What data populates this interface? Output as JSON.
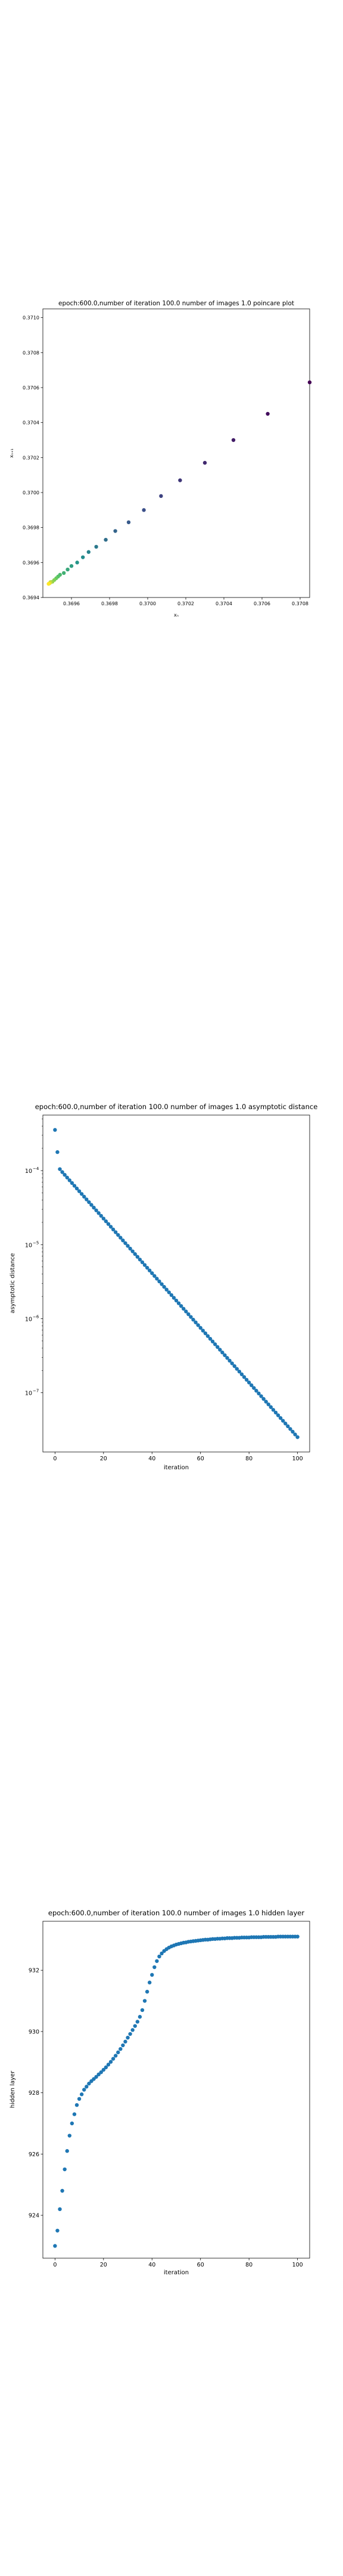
{
  "chart_data": [
    {
      "type": "scatter",
      "title": "epoch:600.0,number of iteration 100.0 number of images 1.0 poincare plot",
      "xlabel": "xₙ",
      "ylabel": "xₙ₊₁",
      "xlim": [
        0.36945,
        0.37085
      ],
      "ylim": [
        0.3694,
        0.37105
      ],
      "xticks": [
        0.3696,
        0.3698,
        0.37,
        0.3702,
        0.3704,
        0.3706,
        0.3708
      ],
      "xtick_labels": [
        "0.3696",
        "0.3698",
        "0.3700",
        "0.3702",
        "0.3704",
        "0.3706",
        "0.3708"
      ],
      "yticks": [
        0.3694,
        0.3696,
        0.3698,
        0.37,
        0.3702,
        0.3704,
        0.3706,
        0.3708,
        0.371
      ],
      "ytick_labels": [
        "0.3694",
        "0.3696",
        "0.3698",
        "0.3700",
        "0.3702",
        "0.3704",
        "0.3706",
        "0.3708",
        "0.3710"
      ],
      "colormap": "viridis",
      "color_by": "iteration",
      "series": [
        {
          "x": [
            0.37085,
            0.37063,
            0.37045,
            0.3703,
            0.37017,
            0.37007,
            0.36998,
            0.3699,
            0.36983,
            0.36978,
            0.36973,
            0.36969,
            0.36966,
            0.36963,
            0.3696,
            0.36958,
            0.36956,
            0.36954,
            0.36953,
            0.36952,
            0.36951,
            0.3695,
            0.36949,
            0.369488,
            0.369484,
            0.36948
          ],
          "y": [
            0.37063,
            0.37045,
            0.3703,
            0.37017,
            0.37007,
            0.36998,
            0.3699,
            0.36983,
            0.36978,
            0.36973,
            0.36969,
            0.36966,
            0.36963,
            0.3696,
            0.36958,
            0.36956,
            0.36954,
            0.36953,
            0.36952,
            0.36951,
            0.3695,
            0.36949,
            0.369488,
            0.369484,
            0.36948,
            0.369478
          ]
        }
      ],
      "grid": false
    },
    {
      "type": "scatter",
      "title": "epoch:600.0,number of iteration 100.0  number of images 1.0 asymptotic distance",
      "xlabel": "iteration",
      "ylabel": "asymptotic distance",
      "yscale": "log",
      "xlim": [
        -5,
        105
      ],
      "ylim_log10": [
        -7.8,
        -3.25
      ],
      "xticks": [
        0,
        20,
        40,
        60,
        80,
        100
      ],
      "xtick_labels": [
        "0",
        "20",
        "40",
        "60",
        "80",
        "100"
      ],
      "yticks_log10": [
        -4,
        -5,
        -6,
        -7
      ],
      "ytick_base": "10",
      "ytick_exponents": [
        "−4",
        "−5",
        "−6",
        "−7"
      ],
      "series": [
        {
          "x_start": 0,
          "x_end": 100,
          "head_log10": [
            -3.45,
            -3.75,
            -3.98
          ],
          "log10_at_3": -4.02,
          "log10_at_100": -7.6
        }
      ],
      "color": "#1f77b4",
      "grid": false
    },
    {
      "type": "scatter",
      "title": "epoch:600.0,number of iteration 100.0  number of images 1.0 hidden layer",
      "xlabel": "iteration",
      "ylabel": "hidden layer",
      "xlim": [
        -5,
        105
      ],
      "ylim": [
        922.6,
        933.6
      ],
      "xticks": [
        0,
        20,
        40,
        60,
        80,
        100
      ],
      "xtick_labels": [
        "0",
        "20",
        "40",
        "60",
        "80",
        "100"
      ],
      "yticks": [
        924,
        926,
        928,
        930,
        932
      ],
      "ytick_labels": [
        "924",
        "926",
        "928",
        "930",
        "932"
      ],
      "series": [
        {
          "x": [
            0,
            1,
            2,
            3,
            4,
            5,
            6,
            7,
            8,
            9,
            10,
            11,
            12,
            13,
            14,
            15,
            16,
            17,
            18,
            19,
            20,
            21,
            22,
            23,
            24,
            25,
            26,
            27,
            28,
            29,
            30,
            31,
            32,
            33,
            34,
            35,
            36,
            37,
            38,
            39,
            40,
            41,
            42,
            43,
            44,
            45,
            46,
            47,
            48,
            49,
            50,
            51,
            52,
            53,
            54,
            55,
            56,
            57,
            58,
            59,
            60,
            61,
            62,
            63,
            64,
            65,
            66,
            67,
            68,
            69,
            70,
            71,
            72,
            73,
            74,
            75,
            76,
            77,
            78,
            79,
            80,
            81,
            82,
            83,
            84,
            85,
            86,
            87,
            88,
            89,
            90,
            91,
            92,
            93,
            94,
            95,
            96,
            97,
            98,
            99,
            100
          ],
          "y": [
            923.0,
            923.5,
            924.2,
            924.8,
            925.5,
            926.1,
            926.6,
            927.0,
            927.3,
            927.6,
            927.8,
            927.95,
            928.1,
            928.2,
            928.3,
            928.38,
            928.45,
            928.52,
            928.6,
            928.67,
            928.75,
            928.83,
            928.92,
            929.01,
            929.11,
            929.21,
            929.32,
            929.43,
            929.55,
            929.67,
            929.8,
            929.92,
            930.05,
            930.18,
            930.32,
            930.48,
            930.7,
            931.0,
            931.3,
            931.6,
            931.85,
            932.1,
            932.3,
            932.45,
            932.55,
            932.63,
            932.69,
            932.74,
            932.78,
            932.81,
            932.84,
            932.86,
            932.88,
            932.9,
            932.91,
            932.93,
            932.94,
            932.95,
            932.96,
            932.97,
            932.98,
            932.99,
            933.0,
            933.0,
            933.01,
            933.02,
            933.02,
            933.03,
            933.03,
            933.04,
            933.04,
            933.05,
            933.05,
            933.05,
            933.06,
            933.06,
            933.06,
            933.07,
            933.07,
            933.07,
            933.07,
            933.08,
            933.08,
            933.08,
            933.08,
            933.08,
            933.09,
            933.09,
            933.09,
            933.09,
            933.09,
            933.09,
            933.1,
            933.1,
            933.1,
            933.1,
            933.1,
            933.1,
            933.1,
            933.1,
            933.1
          ]
        }
      ],
      "color": "#1f77b4",
      "grid": false
    }
  ]
}
